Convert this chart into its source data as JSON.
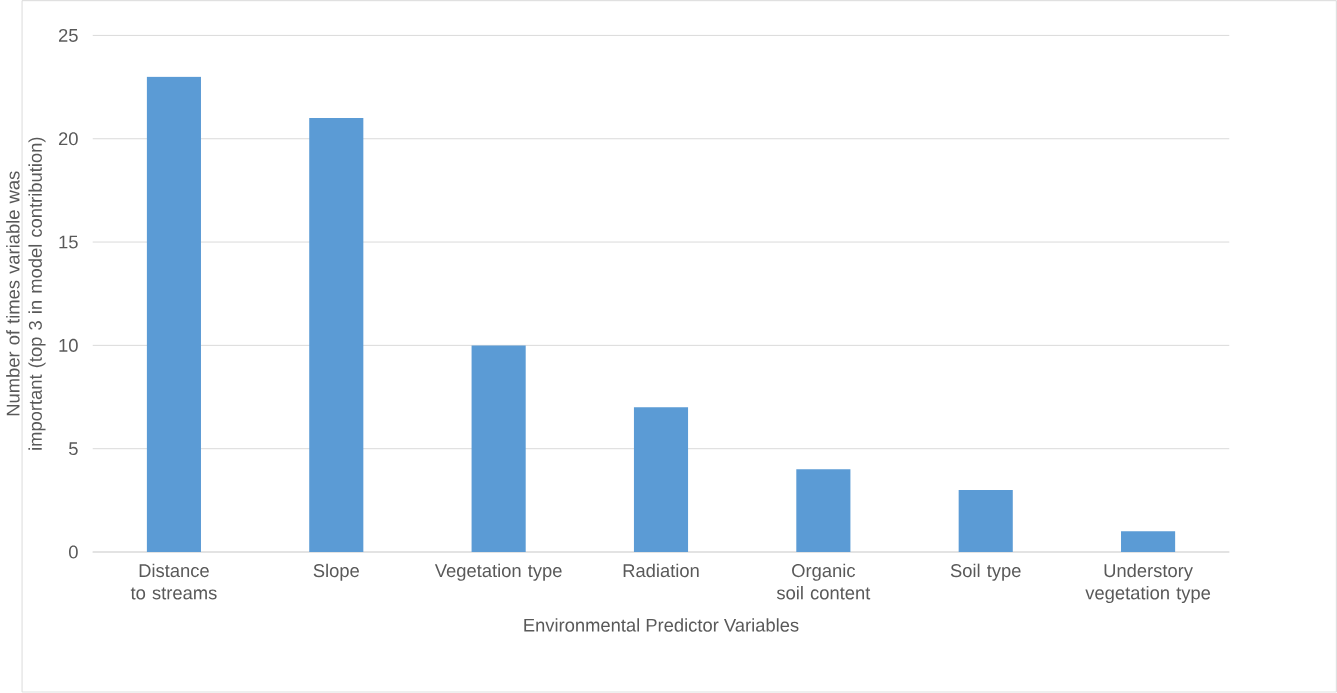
{
  "chart_data": {
    "type": "bar",
    "xlabel": "Environmental Predictor Variables",
    "ylabel": "Number of times variable was important (top 3 in model contribution)",
    "categories": [
      "Distance to streams",
      "Slope",
      "Vegetation type",
      "Radiation",
      "Organic soil content",
      "Soil type",
      "Understory vegetation type"
    ],
    "values": [
      23,
      21,
      10,
      7,
      4,
      3,
      1
    ],
    "color": "#5b9bd5",
    "ylim": [
      0,
      25
    ],
    "yticks": [
      0,
      5,
      10,
      15,
      20,
      25
    ],
    "grid": "y"
  }
}
